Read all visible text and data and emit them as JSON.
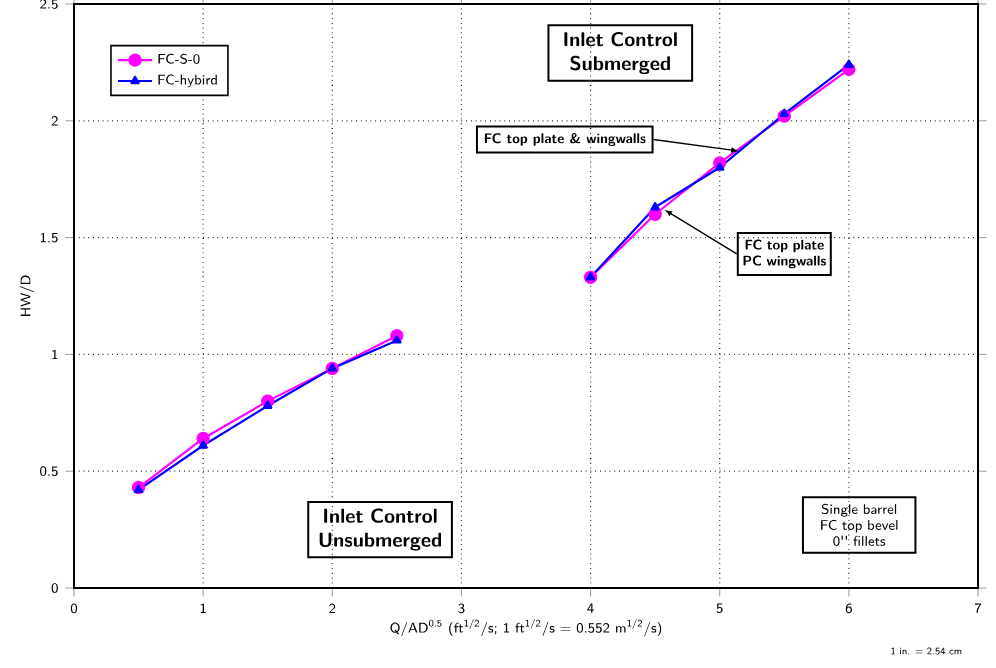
{
  "chart_data": {
    "type": "line",
    "xlabel": "Q/AD$^{0.5}$ (ft$^{1/2}$/s; 1 ft$^{1/2}$/s = 0.552 m$^{1/2}$/s)",
    "ylabel": "HW/D",
    "x": [
      0.5,
      1,
      1.5,
      2,
      2.5,
      3,
      4,
      4.5,
      5,
      5.5,
      6
    ],
    "series": [
      {
        "name": "FC-S-0",
        "color": "#ff00ff",
        "marker": "circle",
        "values": [
          0.43,
          0.64,
          0.8,
          0.94,
          1.08,
          null,
          1.33,
          1.6,
          1.82,
          2.02,
          2.22
        ]
      },
      {
        "name": "FC-hybird",
        "color": "#0000ff",
        "marker": "triangle",
        "values": [
          0.42,
          0.61,
          0.78,
          0.94,
          1.06,
          null,
          1.33,
          1.63,
          1.8,
          2.03,
          2.24
        ]
      }
    ],
    "xlim": [
      0,
      7
    ],
    "ylim": [
      0,
      2.5
    ],
    "xticks": [
      0,
      1,
      2,
      3,
      4,
      5,
      6,
      7
    ],
    "yticks": [
      0,
      0.5,
      1,
      1.5,
      2,
      2.5
    ],
    "grid": true,
    "legend": "top left",
    "line_style": "solid",
    "annotations": [
      "Inlet Control Submerged",
      "Inlet Control Unsubmerged",
      {
        "text": "FC top plate & wingwalls",
        "x": 5.15,
        "y": 1.87
      },
      {
        "text": "FC top plate PC wingwalls",
        "x": 4.57,
        "y": 1.62
      },
      "Single barrel FC top bevel 0'' fillets",
      "1 in. = 2.54 cm"
    ]
  }
}
